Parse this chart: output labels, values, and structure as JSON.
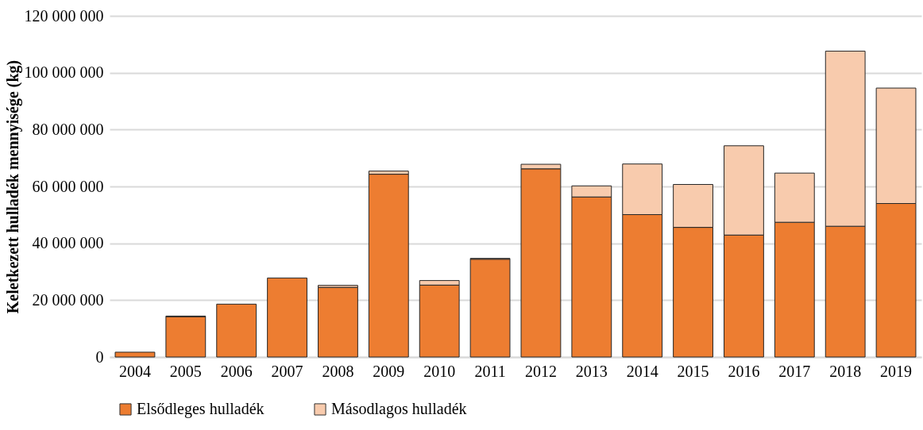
{
  "chart_data": {
    "type": "bar",
    "stacked": true,
    "ylabel": "Keletkezett hulladék mennyisége (kg)",
    "categories": [
      "2004",
      "2005",
      "2006",
      "2007",
      "2008",
      "2009",
      "2010",
      "2011",
      "2012",
      "2013",
      "2014",
      "2015",
      "2016",
      "2017",
      "2018",
      "2019"
    ],
    "series": [
      {
        "name": "Elsődleges hulladék",
        "color": "#ed7d31",
        "values": [
          1700000,
          14200000,
          18600000,
          27800000,
          24500000,
          64300000,
          25300000,
          34400000,
          66200000,
          56300000,
          50100000,
          45600000,
          42900000,
          47400000,
          46000000,
          54000000
        ]
      },
      {
        "name": "Másodlagos hulladék",
        "color": "#f8cbad",
        "values": [
          0,
          200000,
          null,
          null,
          700000,
          1100000,
          1600000,
          300000,
          1600000,
          3900000,
          17800000,
          15100000,
          31400000,
          17300000,
          61600000,
          40600000
        ]
      }
    ],
    "ylim": [
      0,
      120000000
    ],
    "yticks": [
      {
        "value": 0,
        "label": "0"
      },
      {
        "value": 20000000,
        "label": "20 000 000"
      },
      {
        "value": 40000000,
        "label": "40 000 000"
      },
      {
        "value": 60000000,
        "label": "60 000 000"
      },
      {
        "value": 80000000,
        "label": "80 000 000"
      },
      {
        "value": 100000000,
        "label": "100 000 000"
      },
      {
        "value": 120000000,
        "label": "120 000 000"
      }
    ],
    "grid": "y",
    "legend": "bottom"
  }
}
